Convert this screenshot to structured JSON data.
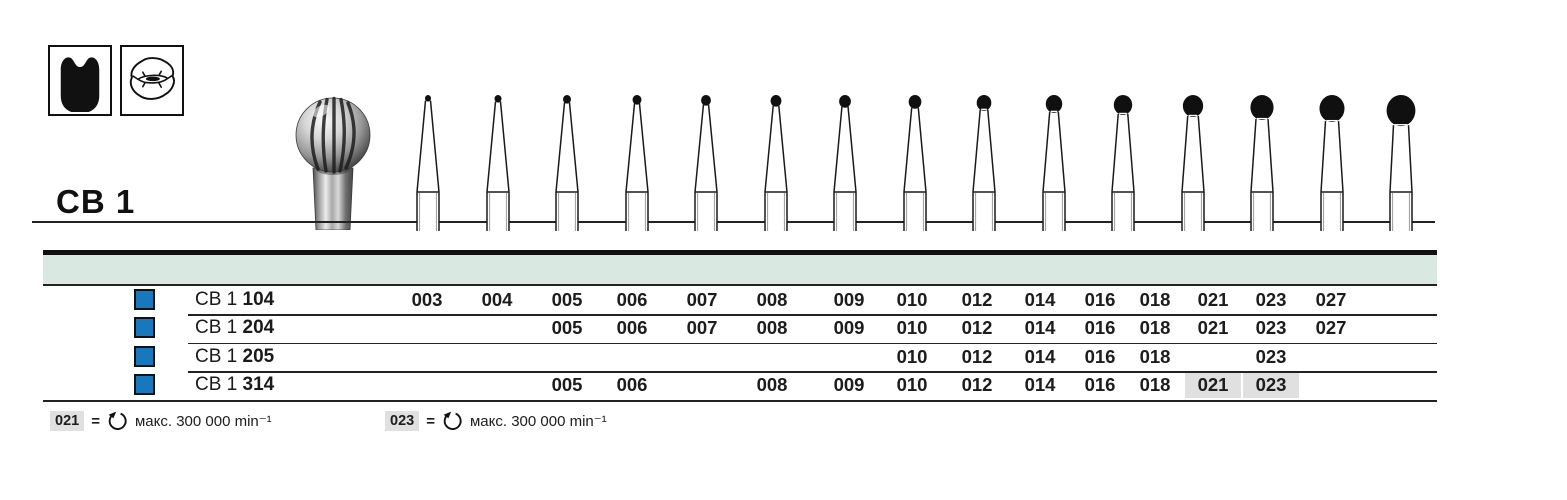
{
  "page": {
    "title_series": "CB 1"
  },
  "header_icons": [
    {
      "name": "tooth-crown-icon"
    },
    {
      "name": "occlusal-tooth-icon"
    }
  ],
  "figure": {
    "photo": "round-carbide-bur-photo",
    "lineup_note": "15 round-bur silhouettes, head size increasing left to right"
  },
  "columns": [
    "003",
    "004",
    "005",
    "006",
    "007",
    "008",
    "009",
    "010",
    "012",
    "014",
    "016",
    "018",
    "021",
    "023",
    "027"
  ],
  "rows": [
    {
      "prefix": "CB 1",
      "code": "104",
      "values": [
        "003",
        "004",
        "005",
        "006",
        "007",
        "008",
        "009",
        "010",
        "012",
        "014",
        "016",
        "018",
        "021",
        "023",
        "027"
      ],
      "highlighted": []
    },
    {
      "prefix": "CB 1",
      "code": "204",
      "values": [
        "",
        "",
        "005",
        "006",
        "007",
        "008",
        "009",
        "010",
        "012",
        "014",
        "016",
        "018",
        "021",
        "023",
        "027"
      ],
      "highlighted": []
    },
    {
      "prefix": "CB 1",
      "code": "205",
      "values": [
        "",
        "",
        "",
        "",
        "",
        "",
        "",
        "010",
        "012",
        "014",
        "016",
        "018",
        "",
        "023",
        ""
      ],
      "highlighted": []
    },
    {
      "prefix": "CB 1",
      "code": "314",
      "values": [
        "",
        "",
        "005",
        "006",
        "",
        "008",
        "009",
        "010",
        "012",
        "014",
        "016",
        "018",
        "021",
        "023",
        ""
      ],
      "highlighted": [
        "021",
        "023"
      ]
    }
  ],
  "footnotes": [
    {
      "code": "021",
      "eq": "=",
      "icon": "rotation-speed-icon",
      "text": "макс. 300 000 min⁻¹"
    },
    {
      "code": "023",
      "eq": "=",
      "icon": "rotation-speed-icon",
      "text": "макс. 300 000 min⁻¹"
    }
  ],
  "colors": {
    "marker_blue": "#1878be",
    "band_green": "#d9e8e0",
    "highlight_gray": "#e0e0e0",
    "ink": "#1a1a1a"
  }
}
